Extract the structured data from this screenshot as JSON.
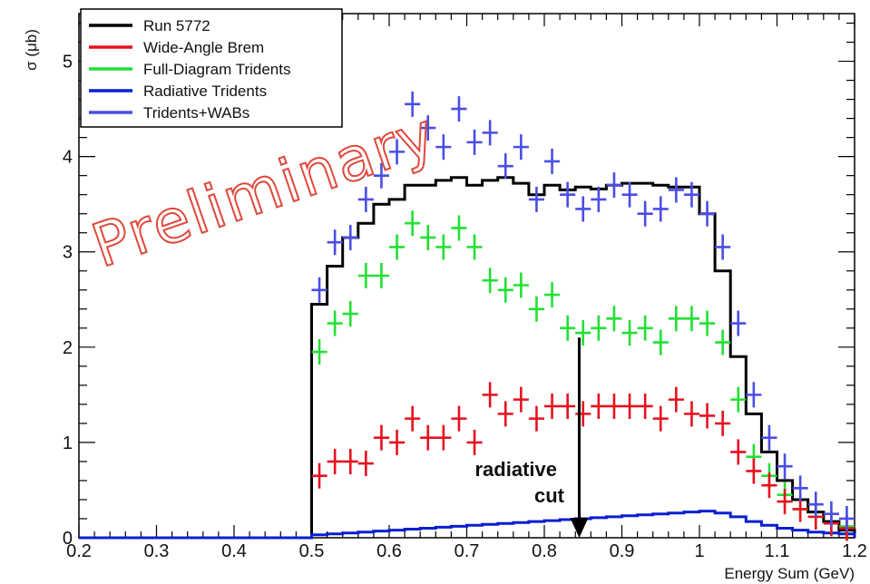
{
  "chart_data": {
    "type": "line",
    "title": "",
    "xlabel": "Energy Sum (GeV)",
    "ylabel": "σ (μb)",
    "xlim": [
      0.2,
      1.2
    ],
    "ylim": [
      0,
      5.5
    ],
    "x_ticks": [
      "0.2",
      "0.3",
      "0.4",
      "0.5",
      "0.6",
      "0.7",
      "0.8",
      "0.9",
      "1",
      "1.1",
      "1.2"
    ],
    "y_ticks": [
      "0",
      "1",
      "2",
      "3",
      "4",
      "5"
    ],
    "legend_position": "top-left",
    "watermark": "Preliminary",
    "annotation": {
      "line1": "radiative",
      "line2": "cut",
      "x": 0.845,
      "y_from": 2.1,
      "y_to": 0.0
    },
    "bin_width": 0.02,
    "series": [
      {
        "name": "Run 5772",
        "style": "histogram",
        "color": "#000000",
        "bin_starts": [
          0.2,
          0.22,
          0.24,
          0.26,
          0.28,
          0.3,
          0.32,
          0.34,
          0.36,
          0.38,
          0.4,
          0.42,
          0.44,
          0.46,
          0.48,
          0.5,
          0.52,
          0.54,
          0.56,
          0.58,
          0.6,
          0.62,
          0.64,
          0.66,
          0.68,
          0.7,
          0.72,
          0.74,
          0.76,
          0.78,
          0.8,
          0.82,
          0.84,
          0.86,
          0.88,
          0.9,
          0.92,
          0.94,
          0.96,
          0.98,
          1.0,
          1.02,
          1.04,
          1.06,
          1.08,
          1.1,
          1.12,
          1.14,
          1.16,
          1.18
        ],
        "values": [
          0,
          0,
          0,
          0,
          0,
          0,
          0,
          0,
          0,
          0,
          0,
          0,
          0,
          0,
          0,
          2.45,
          2.85,
          3.15,
          3.3,
          3.5,
          3.55,
          3.7,
          3.7,
          3.75,
          3.78,
          3.7,
          3.75,
          3.78,
          3.72,
          3.6,
          3.7,
          3.65,
          3.68,
          3.66,
          3.7,
          3.72,
          3.72,
          3.7,
          3.68,
          3.68,
          3.4,
          2.8,
          1.9,
          1.3,
          0.9,
          0.6,
          0.4,
          0.27,
          0.17,
          0.08
        ]
      },
      {
        "name": "Wide-Angle Brem",
        "style": "markers",
        "color": "#e8101e",
        "x": [
          0.51,
          0.53,
          0.55,
          0.57,
          0.59,
          0.61,
          0.63,
          0.65,
          0.67,
          0.69,
          0.71,
          0.73,
          0.75,
          0.77,
          0.79,
          0.81,
          0.83,
          0.85,
          0.87,
          0.89,
          0.91,
          0.93,
          0.95,
          0.97,
          0.99,
          1.01,
          1.03,
          1.05,
          1.07,
          1.09,
          1.11,
          1.13,
          1.15,
          1.17,
          1.19
        ],
        "y": [
          0.65,
          0.8,
          0.8,
          0.78,
          1.05,
          1.0,
          1.25,
          1.05,
          1.05,
          1.25,
          1.0,
          1.5,
          1.3,
          1.45,
          1.25,
          1.38,
          1.38,
          1.3,
          1.38,
          1.38,
          1.38,
          1.38,
          1.25,
          1.45,
          1.3,
          1.28,
          1.2,
          0.9,
          0.7,
          0.55,
          0.38,
          0.3,
          0.22,
          0.15,
          0.1
        ]
      },
      {
        "name": "Full-Diagram Tridents",
        "style": "markers",
        "color": "#22e034",
        "x": [
          0.51,
          0.53,
          0.55,
          0.57,
          0.59,
          0.61,
          0.63,
          0.65,
          0.67,
          0.69,
          0.71,
          0.73,
          0.75,
          0.77,
          0.79,
          0.81,
          0.83,
          0.85,
          0.87,
          0.89,
          0.91,
          0.93,
          0.95,
          0.97,
          0.99,
          1.01,
          1.03,
          1.05,
          1.07,
          1.09,
          1.11,
          1.13,
          1.15,
          1.17,
          1.19
        ],
        "y": [
          1.95,
          2.25,
          2.35,
          2.75,
          2.75,
          3.05,
          3.3,
          3.15,
          3.05,
          3.25,
          3.05,
          2.7,
          2.6,
          2.65,
          2.4,
          2.55,
          2.2,
          2.15,
          2.2,
          2.3,
          2.15,
          2.2,
          2.05,
          2.3,
          2.3,
          2.25,
          2.05,
          1.45,
          0.85,
          0.65,
          0.45,
          0.3,
          0.22,
          0.15,
          0.12
        ]
      },
      {
        "name": "Radiative Tridents",
        "style": "histogram",
        "color": "#0a1fd0",
        "bin_starts": [
          0.2,
          0.22,
          0.24,
          0.26,
          0.28,
          0.3,
          0.32,
          0.34,
          0.36,
          0.38,
          0.4,
          0.42,
          0.44,
          0.46,
          0.48,
          0.5,
          0.52,
          0.54,
          0.56,
          0.58,
          0.6,
          0.62,
          0.64,
          0.66,
          0.68,
          0.7,
          0.72,
          0.74,
          0.76,
          0.78,
          0.8,
          0.82,
          0.84,
          0.86,
          0.88,
          0.9,
          0.92,
          0.94,
          0.96,
          0.98,
          1.0,
          1.02,
          1.04,
          1.06,
          1.08,
          1.1,
          1.12,
          1.14,
          1.16,
          1.18
        ],
        "values": [
          0,
          0,
          0,
          0,
          0,
          0,
          0,
          0,
          0,
          0,
          0,
          0,
          0,
          0,
          0,
          0.03,
          0.04,
          0.05,
          0.06,
          0.07,
          0.08,
          0.09,
          0.1,
          0.11,
          0.12,
          0.13,
          0.14,
          0.15,
          0.16,
          0.17,
          0.18,
          0.19,
          0.2,
          0.21,
          0.22,
          0.23,
          0.24,
          0.25,
          0.26,
          0.27,
          0.28,
          0.26,
          0.22,
          0.17,
          0.13,
          0.1,
          0.08,
          0.06,
          0.05,
          0.04
        ]
      },
      {
        "name": "Tridents+WABs",
        "style": "markers",
        "color": "#4a4ee6",
        "x": [
          0.51,
          0.53,
          0.55,
          0.57,
          0.59,
          0.61,
          0.63,
          0.65,
          0.67,
          0.69,
          0.71,
          0.73,
          0.75,
          0.77,
          0.79,
          0.81,
          0.83,
          0.85,
          0.87,
          0.89,
          0.91,
          0.93,
          0.95,
          0.97,
          0.99,
          1.01,
          1.03,
          1.05,
          1.07,
          1.09,
          1.11,
          1.13,
          1.15,
          1.17,
          1.19
        ],
        "y": [
          2.6,
          3.1,
          3.15,
          3.55,
          3.8,
          4.05,
          4.55,
          4.3,
          4.1,
          4.5,
          4.15,
          4.25,
          3.9,
          4.1,
          3.55,
          3.95,
          3.6,
          3.45,
          3.55,
          3.7,
          3.6,
          3.4,
          3.45,
          3.65,
          3.6,
          3.4,
          3.05,
          2.25,
          1.5,
          1.05,
          0.75,
          0.52,
          0.35,
          0.25,
          0.2
        ]
      }
    ]
  }
}
